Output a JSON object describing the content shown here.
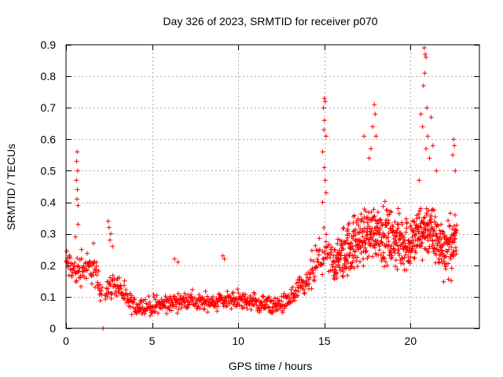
{
  "chart_data": {
    "type": "scatter",
    "title": "Day 326 of 2023, SRMTID for receiver p070",
    "xlabel": "GPS time / hours",
    "ylabel": "SRMTID / TECUs",
    "xlim": [
      0,
      24
    ],
    "ylim": [
      0,
      0.9
    ],
    "grid": true,
    "marker": "+",
    "color": "#ff0000",
    "x_ticks": [
      0,
      5,
      10,
      15,
      20
    ],
    "y_ticks": [
      0,
      0.1,
      0.2,
      0.3,
      0.4,
      0.5,
      0.6,
      0.7,
      0.8,
      0.9
    ],
    "x_tick_labels": [
      "0",
      "5",
      "10",
      "15",
      "20"
    ],
    "y_tick_labels": [
      "0",
      "0.1",
      "0.2",
      "0.3",
      "0.4",
      "0.5",
      "0.6",
      "0.7",
      "0.8",
      "0.9"
    ],
    "trend": [
      [
        0.0,
        0.21
      ],
      [
        0.5,
        0.18
      ],
      [
        1.0,
        0.19
      ],
      [
        1.6,
        0.19
      ],
      [
        2.0,
        0.12
      ],
      [
        2.5,
        0.13
      ],
      [
        3.0,
        0.14
      ],
      [
        3.5,
        0.09
      ],
      [
        4.0,
        0.07
      ],
      [
        5.0,
        0.07
      ],
      [
        6.0,
        0.08
      ],
      [
        7.0,
        0.09
      ],
      [
        8.0,
        0.08
      ],
      [
        9.0,
        0.09
      ],
      [
        10.0,
        0.09
      ],
      [
        11.0,
        0.08
      ],
      [
        12.0,
        0.07
      ],
      [
        12.8,
        0.08
      ],
      [
        13.5,
        0.12
      ],
      [
        14.0,
        0.14
      ],
      [
        14.5,
        0.2
      ],
      [
        15.0,
        0.24
      ],
      [
        15.5,
        0.2
      ],
      [
        16.0,
        0.23
      ],
      [
        16.5,
        0.26
      ],
      [
        17.0,
        0.28
      ],
      [
        17.5,
        0.3
      ],
      [
        18.0,
        0.31
      ],
      [
        18.5,
        0.3
      ],
      [
        19.0,
        0.28
      ],
      [
        19.5,
        0.27
      ],
      [
        20.0,
        0.27
      ],
      [
        20.5,
        0.3
      ],
      [
        21.0,
        0.32
      ],
      [
        21.5,
        0.28
      ],
      [
        22.0,
        0.25
      ],
      [
        22.7,
        0.28
      ]
    ],
    "spikes": [
      [
        0.65,
        0.56
      ],
      [
        0.62,
        0.53
      ],
      [
        0.68,
        0.5
      ],
      [
        0.6,
        0.47
      ],
      [
        0.66,
        0.44
      ],
      [
        0.64,
        0.41
      ],
      [
        0.7,
        0.39
      ],
      [
        0.7,
        0.33
      ],
      [
        0.55,
        0.29
      ],
      [
        2.45,
        0.34
      ],
      [
        2.5,
        0.32
      ],
      [
        2.6,
        0.3
      ],
      [
        2.55,
        0.28
      ],
      [
        2.7,
        0.26
      ],
      [
        6.3,
        0.22
      ],
      [
        6.5,
        0.21
      ],
      [
        9.1,
        0.23
      ],
      [
        9.2,
        0.22
      ],
      [
        15.0,
        0.73
      ],
      [
        15.05,
        0.72
      ],
      [
        14.95,
        0.7
      ],
      [
        15.0,
        0.66
      ],
      [
        14.97,
        0.63
      ],
      [
        15.1,
        0.61
      ],
      [
        14.9,
        0.56
      ],
      [
        15.0,
        0.51
      ],
      [
        15.05,
        0.47
      ],
      [
        15.1,
        0.43
      ],
      [
        14.9,
        0.4
      ],
      [
        17.9,
        0.71
      ],
      [
        17.95,
        0.68
      ],
      [
        17.8,
        0.64
      ],
      [
        18.0,
        0.61
      ],
      [
        17.3,
        0.61
      ],
      [
        17.7,
        0.57
      ],
      [
        17.6,
        0.54
      ],
      [
        20.8,
        0.89
      ],
      [
        20.85,
        0.87
      ],
      [
        20.9,
        0.86
      ],
      [
        20.82,
        0.81
      ],
      [
        20.75,
        0.77
      ],
      [
        20.95,
        0.7
      ],
      [
        20.6,
        0.68
      ],
      [
        21.2,
        0.67
      ],
      [
        20.7,
        0.64
      ],
      [
        21.0,
        0.61
      ],
      [
        21.3,
        0.58
      ],
      [
        20.9,
        0.57
      ],
      [
        21.1,
        0.54
      ],
      [
        21.5,
        0.5
      ],
      [
        20.5,
        0.47
      ],
      [
        22.5,
        0.6
      ],
      [
        22.55,
        0.58
      ],
      [
        22.45,
        0.55
      ],
      [
        22.6,
        0.5
      ]
    ],
    "outliers": [
      [
        2.15,
        0.0
      ],
      [
        1.6,
        0.27
      ],
      [
        0.9,
        0.25
      ]
    ]
  }
}
